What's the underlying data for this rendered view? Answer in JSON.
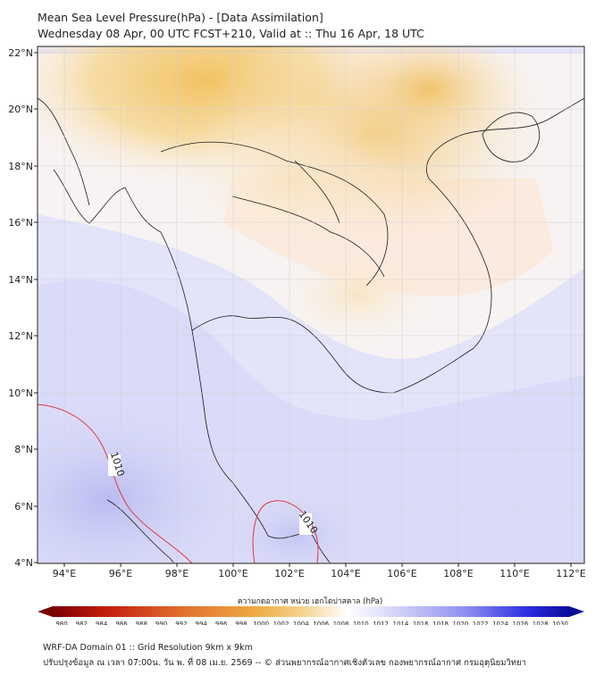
{
  "title_line1": "Mean Sea Level Pressure(hPa) - [Data Assimilation]",
  "title_line2": "Wednesday 08 Apr, 00 UTC FCST+210, Valid at :: Thu 16 Apr, 18 UTC",
  "lon_ticks": [
    "94°E",
    "96°E",
    "98°E",
    "100°E",
    "102°E",
    "104°E",
    "106°E",
    "108°E",
    "110°E",
    "112°E"
  ],
  "lat_ticks": [
    "22°N",
    "20°N",
    "18°N",
    "16°N",
    "14°N",
    "12°N",
    "10°N",
    "8°N",
    "6°N",
    "4°N"
  ],
  "contour_labels": [
    "1010",
    "1010"
  ],
  "colorbar": {
    "title": "ความกดอากาศ หน่วย เฮกโตปาสคาล (hPa)",
    "ticks": [
      "980",
      "982",
      "984",
      "986",
      "988",
      "990",
      "992",
      "994",
      "996",
      "998",
      "1000",
      "1002",
      "1004",
      "1006",
      "1008",
      "1010",
      "1012",
      "1014",
      "1016",
      "1018",
      "1020",
      "1022",
      "1024",
      "1026",
      "1028",
      "1030"
    ]
  },
  "footer_line1": "WRF-DA Domain 01 :: Grid Resolution 9km x 9km",
  "footer_line2": "ปรับปรุงข้อมูล ณ เวลา 07:00น. วัน พ. ที่ 08 เม.ย. 2569 -- © ส่วนพยากรณ์อากาศเชิงตัวเลข กองพยากรณ์อากาศ กรมอุตุนิยมวิทยา"
}
